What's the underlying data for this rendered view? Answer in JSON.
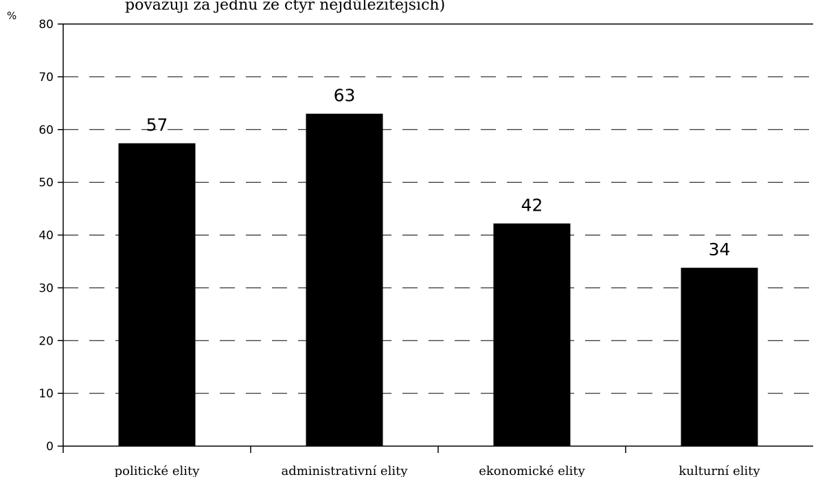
{
  "chart_data": {
    "type": "bar",
    "title": "považuji za jednu ze čtyř nejdůležitějších)",
    "unit_label": "%",
    "categories": [
      "politické elity",
      "administrativní elity",
      "ekonomické elity",
      "kulturní elity"
    ],
    "values": [
      57,
      63,
      42,
      34
    ],
    "bar_value_levels": [
      57.4,
      63,
      42.2,
      33.8
    ],
    "ylim": [
      0,
      80
    ],
    "yticks": [
      0,
      10,
      20,
      30,
      40,
      50,
      60,
      70,
      80
    ],
    "grid": true,
    "grid_style": "dashed",
    "bar_color": "#000000"
  }
}
